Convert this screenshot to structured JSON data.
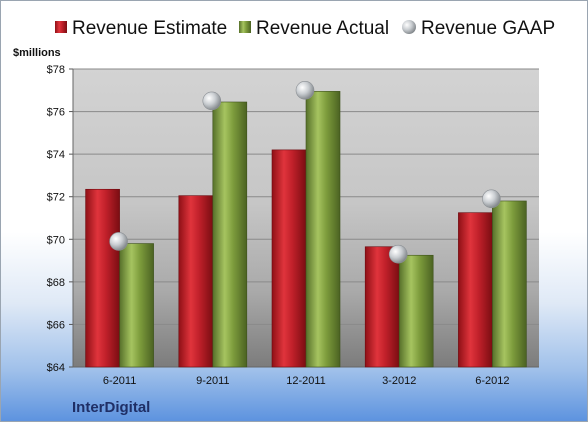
{
  "colors": {
    "estimate": "#c0202a",
    "actual": "#7d9c3c",
    "gaap": "#bfc3c7",
    "accent": "#1f2f66"
  },
  "brand": "InterDigital",
  "chart_data": {
    "type": "bar",
    "categories": [
      "6-2011",
      "9-2011",
      "12-2011",
      "3-2012",
      "6-2012"
    ],
    "series": [
      {
        "name": "Revenue Estimate",
        "values": [
          72.35,
          72.05,
          74.2,
          69.65,
          71.25
        ]
      },
      {
        "name": "Revenue Actual",
        "values": [
          69.8,
          76.45,
          76.95,
          69.25,
          71.8
        ]
      },
      {
        "name": "Revenue GAAP",
        "values": [
          69.9,
          76.5,
          77.0,
          69.3,
          71.9
        ]
      }
    ],
    "ylabel": "$millions",
    "ylim": [
      64,
      78
    ],
    "yticks": [
      64,
      66,
      68,
      70,
      72,
      74,
      76,
      78
    ],
    "ytick_labels": [
      "$64",
      "$66",
      "$68",
      "$70",
      "$72",
      "$74",
      "$76",
      "$78"
    ],
    "grid": true,
    "legend_position": "top"
  }
}
